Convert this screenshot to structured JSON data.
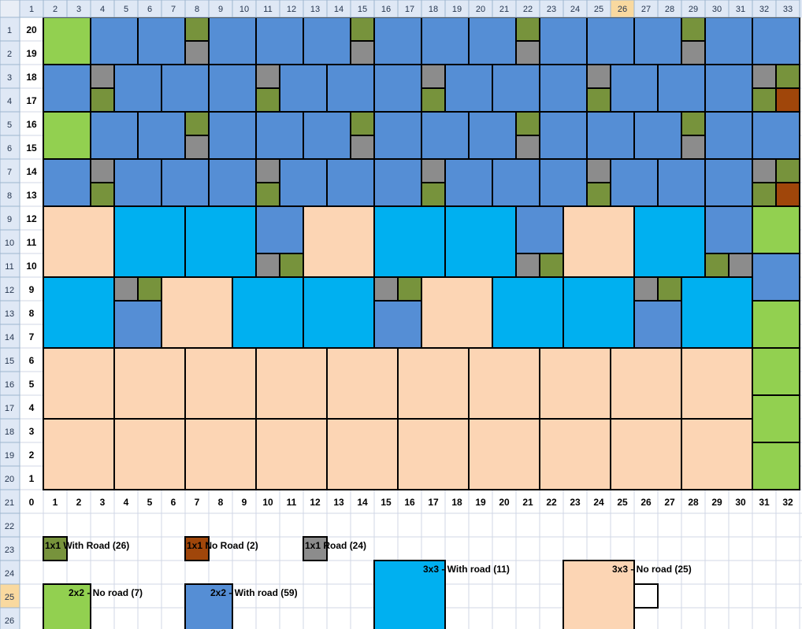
{
  "sheet": {
    "column_headers": [
      "1",
      "2",
      "3",
      "4",
      "5",
      "6",
      "7",
      "8",
      "9",
      "10",
      "11",
      "12",
      "13",
      "14",
      "15",
      "16",
      "17",
      "18",
      "19",
      "20",
      "21",
      "22",
      "23",
      "24",
      "25",
      "26",
      "27",
      "28",
      "29",
      "30",
      "31",
      "32",
      "33"
    ],
    "row_headers": [
      "1",
      "2",
      "3",
      "4",
      "5",
      "6",
      "7",
      "8",
      "9",
      "10",
      "11",
      "12",
      "13",
      "14",
      "15",
      "16",
      "17",
      "18",
      "19",
      "20",
      "21",
      "22",
      "23",
      "24",
      "25",
      "26"
    ],
    "selected_column": "26",
    "selected_row": "25"
  },
  "grid": {
    "y_labels": [
      "20",
      "19",
      "18",
      "17",
      "16",
      "15",
      "14",
      "13",
      "12",
      "11",
      "10",
      "9",
      "8",
      "7",
      "6",
      "5",
      "4",
      "3",
      "2",
      "1"
    ],
    "x_labels": [
      "0",
      "1",
      "2",
      "3",
      "4",
      "5",
      "6",
      "7",
      "8",
      "9",
      "10",
      "11",
      "12",
      "13",
      "14",
      "15",
      "16",
      "17",
      "18",
      "19",
      "20",
      "21",
      "22",
      "23",
      "24",
      "25",
      "26",
      "27",
      "28",
      "29",
      "30",
      "31",
      "32"
    ]
  },
  "legend": {
    "green_1x1": "1x1 With Road (26)",
    "brown_1x1": "1x1 No Road (2)",
    "grey_1x1": "1x1 Road (24)",
    "cyan_3x3": "3x3 - With road (11)",
    "peach_3x3": "3x3 - No road (25)",
    "lime_2x2": "2x2 - No road (7)",
    "blue_2x2": "2x2 - With road (59)"
  },
  "colors": {
    "green_1x1": "#77933c",
    "brown_1x1": "#a0460a",
    "grey_1x1": "#8c8c8c",
    "cyan_3x3": "#00b0f0",
    "peach_3x3": "#fcd5b4",
    "lime_2x2": "#92d050",
    "blue_2x2": "#558ed5",
    "header_bg": "#dfe8f5",
    "header_selected": "#f9d99f",
    "gridline": "#d0d7e5"
  }
}
